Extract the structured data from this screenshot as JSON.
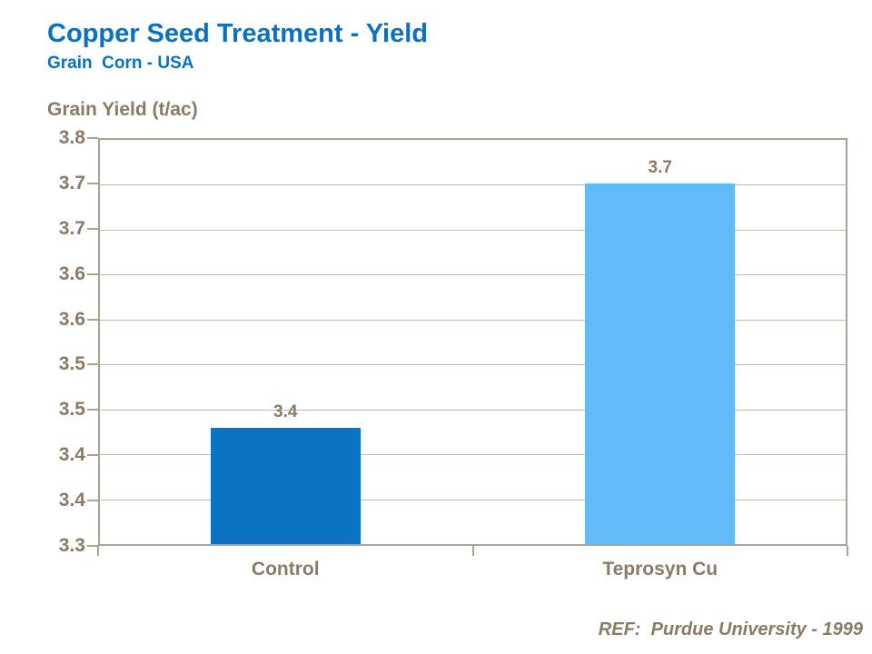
{
  "header": {
    "title": "Copper Seed Treatment - Yield",
    "subtitle": "Grain  Corn - USA"
  },
  "footer": {
    "ref_text": "REF:  Purdue University - 1999"
  },
  "chart_data": {
    "type": "bar",
    "title": "Copper Seed Treatment - Yield",
    "subtitle": "Grain  Corn - USA",
    "ylabel": "Grain Yield (t/ac)",
    "xlabel": "",
    "categories": [
      "Control",
      "Teprosyn Cu"
    ],
    "values": [
      3.43,
      3.7
    ],
    "bar_labels": [
      "3.4",
      "3.7"
    ],
    "bar_colors": [
      "#0a73c4",
      "#63baf8"
    ],
    "ylim": [
      3.3,
      3.75
    ],
    "y_tick_step": 0.05,
    "y_tick_labels_top_to_bottom": [
      "3.8",
      "3.7",
      "3.7",
      "3.6",
      "3.6",
      "3.5",
      "3.5",
      "3.4",
      "3.4",
      "3.3"
    ],
    "grid": true,
    "legend_position": "none",
    "annotation": "REF:  Purdue University - 1999"
  },
  "colors": {
    "title_blue": "#0b70c0",
    "text_taupe": "#8a7a68",
    "axis_line": "#aca195",
    "gridline": "#c2b9af",
    "bar_dark_blue": "#0a73c4",
    "bar_light_blue": "#63baf8",
    "background": "#ffffff"
  }
}
